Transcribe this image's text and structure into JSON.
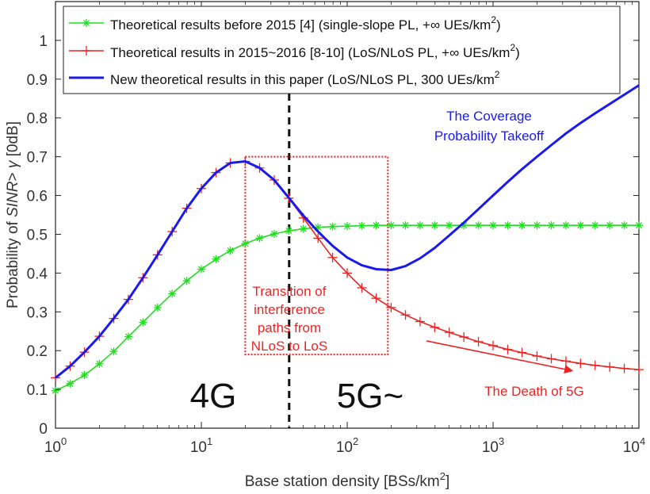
{
  "chart_data": {
    "type": "line",
    "xscale": "log",
    "xlim": [
      1,
      10000
    ],
    "ylim": [
      0,
      1.1
    ],
    "x_ticks": [
      {
        "base": "10",
        "exp": "0"
      },
      {
        "base": "10",
        "exp": "1"
      },
      {
        "base": "10",
        "exp": "2"
      },
      {
        "base": "10",
        "exp": "3"
      },
      {
        "base": "10",
        "exp": "4"
      }
    ],
    "y_ticks": [
      "0",
      "0.1",
      "0.2",
      "0.3",
      "0.4",
      "0.5",
      "0.6",
      "0.7",
      "0.8",
      "0.9",
      "1"
    ],
    "xlabel": {
      "main": "Base station density [BSs/km",
      "sup": "2",
      "end": "]"
    },
    "ylabel": {
      "pre": "Probability of ",
      "it": "SINR",
      "mid": "> ",
      "gamma": "γ",
      "post": " [0dB]"
    },
    "grid": false,
    "legend_position": "top-left",
    "series": [
      {
        "name": "Theoretical results before 2015 [4] (single-slope PL, +∞ UEs/km",
        "name_sup": "2",
        "name_end": ")",
        "color": "#22dd22",
        "marker": "asterisk",
        "x": [
          1,
          1.26,
          1.58,
          2,
          2.51,
          3.16,
          3.98,
          5.01,
          6.31,
          7.94,
          10,
          12.6,
          15.8,
          20,
          25.1,
          31.6,
          39.8,
          50.1,
          63.1,
          79.4,
          100,
          126,
          158,
          200,
          251,
          316,
          398,
          501,
          631,
          794,
          1000,
          1260,
          1580,
          2000,
          2510,
          3160,
          3980,
          5010,
          6310,
          7940,
          10000
        ],
        "y": [
          0.097,
          0.115,
          0.137,
          0.166,
          0.198,
          0.236,
          0.273,
          0.311,
          0.347,
          0.38,
          0.41,
          0.436,
          0.458,
          0.476,
          0.49,
          0.501,
          0.509,
          0.514,
          0.518,
          0.52,
          0.521,
          0.522,
          0.523,
          0.523,
          0.523,
          0.523,
          0.523,
          0.523,
          0.523,
          0.523,
          0.523,
          0.523,
          0.523,
          0.523,
          0.523,
          0.523,
          0.523,
          0.523,
          0.523,
          0.523,
          0.523
        ]
      },
      {
        "name": "Theoretical results in 2015~2016 [8-10] (LoS/NLoS PL, +∞ UEs/km",
        "name_sup": "2",
        "name_end": ")",
        "color": "#ee2222",
        "marker": "plus",
        "x": [
          1,
          1.26,
          1.58,
          2,
          2.51,
          3.16,
          3.98,
          5.01,
          6.31,
          7.94,
          10,
          12.6,
          15.8,
          20,
          25.1,
          31.6,
          39.8,
          50.1,
          63.1,
          79.4,
          100,
          126,
          158,
          200,
          251,
          316,
          398,
          501,
          631,
          794,
          1000,
          1260,
          1580,
          2000,
          2510,
          3160,
          3980,
          5010,
          6310,
          7940,
          10000
        ],
        "y": [
          0.13,
          0.16,
          0.196,
          0.237,
          0.283,
          0.332,
          0.388,
          0.447,
          0.507,
          0.567,
          0.618,
          0.659,
          0.684,
          0.688,
          0.671,
          0.64,
          0.593,
          0.542,
          0.49,
          0.44,
          0.4,
          0.362,
          0.335,
          0.311,
          0.292,
          0.275,
          0.26,
          0.247,
          0.235,
          0.223,
          0.213,
          0.203,
          0.195,
          0.186,
          0.179,
          0.173,
          0.167,
          0.162,
          0.158,
          0.154,
          0.151
        ]
      },
      {
        "name": "New theoretical results in this paper (LoS/NLoS PL, 300 UEs/km",
        "name_sup": "2",
        "name_end": "",
        "color": "#1a1aee",
        "marker": "none",
        "x": [
          1,
          1.26,
          1.58,
          2,
          2.51,
          3.16,
          3.98,
          5.01,
          6.31,
          7.94,
          10,
          12.6,
          15.8,
          20,
          25.1,
          31.6,
          39.8,
          50.1,
          63.1,
          79.4,
          100,
          126,
          158,
          200,
          251,
          316,
          398,
          501,
          631,
          794,
          1000,
          1260,
          1580,
          2000,
          2510,
          3160,
          3980,
          5010,
          6310,
          7940,
          10000
        ],
        "y": [
          0.13,
          0.16,
          0.196,
          0.237,
          0.283,
          0.332,
          0.388,
          0.447,
          0.507,
          0.567,
          0.618,
          0.659,
          0.684,
          0.688,
          0.671,
          0.64,
          0.594,
          0.548,
          0.507,
          0.47,
          0.44,
          0.42,
          0.41,
          0.408,
          0.418,
          0.438,
          0.465,
          0.497,
          0.53,
          0.565,
          0.6,
          0.635,
          0.668,
          0.7,
          0.73,
          0.76,
          0.787,
          0.812,
          0.836,
          0.86,
          0.884
        ]
      }
    ],
    "annotations": {
      "takeoff": [
        "The Coverage",
        "Probability Takeoff"
      ],
      "transition": [
        "Transition of",
        "interference",
        "paths from",
        "NLoS to LoS"
      ],
      "death": "The Death of 5G",
      "label_4g": "4G",
      "label_5g": "5G~"
    },
    "reference_x": 40,
    "transition_box_x": [
      20,
      190
    ],
    "transition_box_y": [
      0.19,
      0.7
    ],
    "death_arrow_x": [
      350,
      3500
    ],
    "death_arrow_y": [
      0.225,
      0.148
    ]
  }
}
